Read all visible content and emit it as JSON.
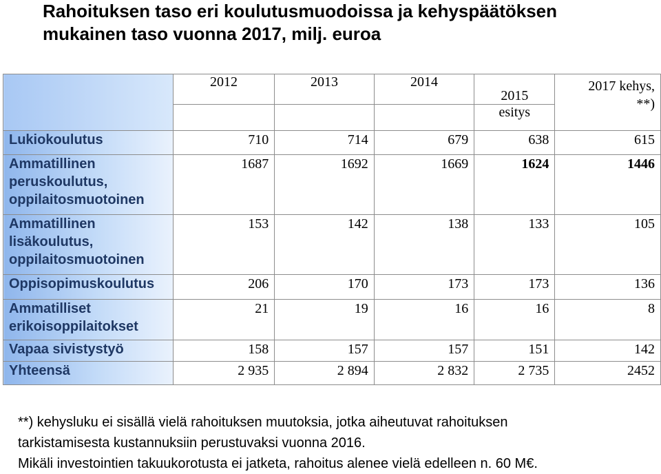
{
  "title_line1": "Rahoituksen taso eri koulutusmuodoissa ja kehyspäätöksen",
  "title_line2": "mukainen taso vuonna 2017, milj. euroa",
  "table": {
    "headers": [
      "2012",
      "2013",
      "2014",
      "2015",
      "2017 kehys,",
      "**)"
    ],
    "header_sub": "esitys",
    "rows": [
      {
        "label": "Lukiokoulutus",
        "values": [
          "710",
          "714",
          "679",
          "638",
          "615"
        ]
      },
      {
        "label_lines": [
          "Ammatillinen",
          "peruskoulutus,",
          "oppilaitosmuotoinen"
        ],
        "values": [
          "1687",
          "1692",
          "1669",
          "1624",
          "1446"
        ]
      },
      {
        "label_lines": [
          "Ammatillinen",
          "lisäkoulutus,",
          "oppilaitosmuotoinen"
        ],
        "values": [
          "153",
          "142",
          "138",
          "133",
          "105"
        ]
      },
      {
        "label": "Oppisopimuskoulutus",
        "values": [
          "206",
          "170",
          "173",
          "173",
          "136"
        ]
      },
      {
        "label_lines": [
          "Ammatilliset",
          "erikoisoppilaitokset"
        ],
        "values": [
          "21",
          "19",
          "16",
          "16",
          "8"
        ]
      },
      {
        "label": "Vapaa sivistystyö",
        "values": [
          "158",
          "157",
          "157",
          "151",
          "142"
        ]
      },
      {
        "label": "Yhteensä",
        "values": [
          "2 935",
          "2 894",
          "2 832",
          "2 735",
          "2452"
        ]
      }
    ]
  },
  "notes": [
    "**) kehysluku ei sisällä vielä rahoituksen muutoksia, jotka aiheutuvat rahoituksen",
    "tarkistamisesta kustannuksiin perustuvaksi vuonna 2016.",
    "Mikäli investointien takuukorotusta ei jatketa, rahoitus alenee vielä edelleen n. 60 M€."
  ]
}
